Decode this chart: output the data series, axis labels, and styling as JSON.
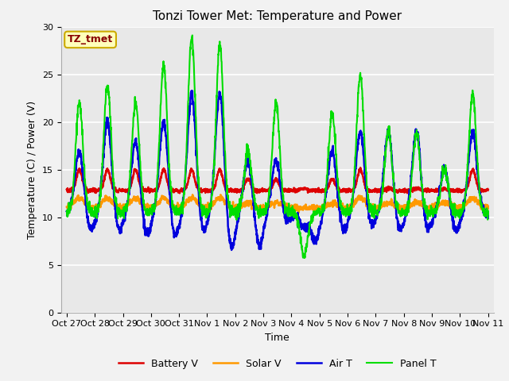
{
  "title": "Tonzi Tower Met: Temperature and Power",
  "xlabel": "Time",
  "ylabel": "Temperature (C) / Power (V)",
  "ylim": [
    0,
    30
  ],
  "colors": {
    "panel_t": "#00DD00",
    "battery_v": "#DD0000",
    "air_t": "#0000DD",
    "solar_v": "#FF9900"
  },
  "legend_labels": [
    "Panel T",
    "Battery V",
    "Air T",
    "Solar V"
  ],
  "bg_color": "#E8E8E8",
  "fig_bg_color": "#F2F2F2",
  "annotation_text": "TZ_tmet",
  "annotation_bg": "#FFFFBB",
  "annotation_border": "#CCAA00",
  "annotation_text_color": "#880000",
  "xtick_labels": [
    "Oct 27",
    "Oct 28",
    "Oct 29",
    "Oct 30",
    "Oct 31",
    "Nov 1",
    "Nov 2",
    "Nov 3",
    "Nov 4",
    "Nov 5",
    "Nov 6",
    "Nov 7",
    "Nov 8",
    "Nov 9",
    "Nov 10",
    "Nov 11"
  ],
  "xtick_positions": [
    0,
    1,
    2,
    3,
    4,
    5,
    6,
    7,
    8,
    9,
    10,
    11,
    12,
    13,
    14,
    15
  ],
  "ytick_positions": [
    0,
    5,
    10,
    15,
    20,
    25,
    30
  ]
}
